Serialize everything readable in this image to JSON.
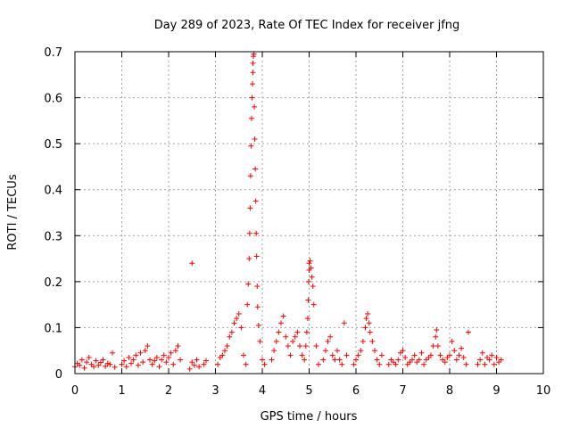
{
  "chart_data": {
    "type": "scatter",
    "title": "Day 289 of 2023, Rate Of TEC Index for receiver jfng",
    "xlabel": "GPS time / hours",
    "ylabel": "ROTI / TECUs",
    "xlim": [
      0,
      10
    ],
    "ylim": [
      0,
      0.7
    ],
    "xticks": [
      "0",
      "1",
      "2",
      "3",
      "4",
      "5",
      "6",
      "7",
      "8",
      "9",
      "10"
    ],
    "yticks": [
      "0",
      "0.1",
      "0.2",
      "0.3",
      "0.4",
      "0.5",
      "0.6",
      "0.7"
    ],
    "grid": true,
    "marker": "+",
    "color": "#ff0000",
    "series": [
      {
        "name": "ROTI",
        "points": [
          [
            0.0,
            0.015
          ],
          [
            0.05,
            0.022
          ],
          [
            0.1,
            0.018
          ],
          [
            0.15,
            0.03
          ],
          [
            0.2,
            0.012
          ],
          [
            0.25,
            0.025
          ],
          [
            0.3,
            0.035
          ],
          [
            0.35,
            0.02
          ],
          [
            0.4,
            0.015
          ],
          [
            0.45,
            0.028
          ],
          [
            0.5,
            0.018
          ],
          [
            0.55,
            0.024
          ],
          [
            0.6,
            0.03
          ],
          [
            0.65,
            0.016
          ],
          [
            0.7,
            0.022
          ],
          [
            0.75,
            0.02
          ],
          [
            0.8,
            0.045
          ],
          [
            0.85,
            0.014
          ],
          [
            1.0,
            0.02
          ],
          [
            1.05,
            0.028
          ],
          [
            1.1,
            0.015
          ],
          [
            1.15,
            0.035
          ],
          [
            1.2,
            0.022
          ],
          [
            1.25,
            0.03
          ],
          [
            1.3,
            0.04
          ],
          [
            1.35,
            0.018
          ],
          [
            1.4,
            0.045
          ],
          [
            1.45,
            0.025
          ],
          [
            1.5,
            0.05
          ],
          [
            1.55,
            0.06
          ],
          [
            1.6,
            0.03
          ],
          [
            1.65,
            0.02
          ],
          [
            1.7,
            0.028
          ],
          [
            1.75,
            0.035
          ],
          [
            1.8,
            0.015
          ],
          [
            1.85,
            0.03
          ],
          [
            1.9,
            0.04
          ],
          [
            1.95,
            0.025
          ],
          [
            2.0,
            0.035
          ],
          [
            2.05,
            0.045
          ],
          [
            2.1,
            0.02
          ],
          [
            2.15,
            0.05
          ],
          [
            2.2,
            0.06
          ],
          [
            2.25,
            0.03
          ],
          [
            2.45,
            0.01
          ],
          [
            2.5,
            0.025
          ],
          [
            2.5,
            0.24
          ],
          [
            2.55,
            0.018
          ],
          [
            2.6,
            0.03
          ],
          [
            2.65,
            0.015
          ],
          [
            2.75,
            0.02
          ],
          [
            2.8,
            0.028
          ],
          [
            3.05,
            0.02
          ],
          [
            3.1,
            0.035
          ],
          [
            3.15,
            0.04
          ],
          [
            3.2,
            0.05
          ],
          [
            3.25,
            0.06
          ],
          [
            3.3,
            0.08
          ],
          [
            3.35,
            0.09
          ],
          [
            3.4,
            0.11
          ],
          [
            3.45,
            0.12
          ],
          [
            3.5,
            0.13
          ],
          [
            3.55,
            0.1
          ],
          [
            3.6,
            0.04
          ],
          [
            3.65,
            0.02
          ],
          [
            3.68,
            0.15
          ],
          [
            3.7,
            0.195
          ],
          [
            3.72,
            0.25
          ],
          [
            3.73,
            0.305
          ],
          [
            3.74,
            0.36
          ],
          [
            3.75,
            0.43
          ],
          [
            3.76,
            0.495
          ],
          [
            3.77,
            0.555
          ],
          [
            3.78,
            0.6
          ],
          [
            3.79,
            0.63
          ],
          [
            3.8,
            0.655
          ],
          [
            3.8,
            0.675
          ],
          [
            3.81,
            0.69
          ],
          [
            3.82,
            0.695
          ],
          [
            3.83,
            0.58
          ],
          [
            3.84,
            0.51
          ],
          [
            3.85,
            0.445
          ],
          [
            3.86,
            0.375
          ],
          [
            3.87,
            0.305
          ],
          [
            3.88,
            0.255
          ],
          [
            3.89,
            0.19
          ],
          [
            3.9,
            0.145
          ],
          [
            3.92,
            0.105
          ],
          [
            3.95,
            0.07
          ],
          [
            4.0,
            0.03
          ],
          [
            4.05,
            0.02
          ],
          [
            4.2,
            0.03
          ],
          [
            4.25,
            0.05
          ],
          [
            4.3,
            0.07
          ],
          [
            4.35,
            0.09
          ],
          [
            4.4,
            0.11
          ],
          [
            4.45,
            0.125
          ],
          [
            4.5,
            0.08
          ],
          [
            4.55,
            0.06
          ],
          [
            4.6,
            0.04
          ],
          [
            4.65,
            0.07
          ],
          [
            4.7,
            0.08
          ],
          [
            4.75,
            0.09
          ],
          [
            4.8,
            0.06
          ],
          [
            4.85,
            0.04
          ],
          [
            4.9,
            0.03
          ],
          [
            4.93,
            0.06
          ],
          [
            4.95,
            0.09
          ],
          [
            4.97,
            0.12
          ],
          [
            4.98,
            0.16
          ],
          [
            4.99,
            0.2
          ],
          [
            5.0,
            0.225
          ],
          [
            5.0,
            0.24
          ],
          [
            5.02,
            0.245
          ],
          [
            5.04,
            0.23
          ],
          [
            5.06,
            0.21
          ],
          [
            5.08,
            0.19
          ],
          [
            5.1,
            0.15
          ],
          [
            5.15,
            0.06
          ],
          [
            5.2,
            0.02
          ],
          [
            5.3,
            0.03
          ],
          [
            5.35,
            0.05
          ],
          [
            5.4,
            0.07
          ],
          [
            5.45,
            0.08
          ],
          [
            5.5,
            0.04
          ],
          [
            5.55,
            0.03
          ],
          [
            5.6,
            0.05
          ],
          [
            5.65,
            0.03
          ],
          [
            5.7,
            0.02
          ],
          [
            5.75,
            0.11
          ],
          [
            5.8,
            0.04
          ],
          [
            5.95,
            0.02
          ],
          [
            6.0,
            0.03
          ],
          [
            6.05,
            0.04
          ],
          [
            6.1,
            0.05
          ],
          [
            6.15,
            0.07
          ],
          [
            6.2,
            0.1
          ],
          [
            6.22,
            0.12
          ],
          [
            6.25,
            0.13
          ],
          [
            6.28,
            0.11
          ],
          [
            6.3,
            0.09
          ],
          [
            6.35,
            0.07
          ],
          [
            6.4,
            0.05
          ],
          [
            6.45,
            0.03
          ],
          [
            6.5,
            0.02
          ],
          [
            6.55,
            0.04
          ],
          [
            6.7,
            0.02
          ],
          [
            6.75,
            0.03
          ],
          [
            6.8,
            0.025
          ],
          [
            6.85,
            0.02
          ],
          [
            6.9,
            0.03
          ],
          [
            6.95,
            0.045
          ],
          [
            7.0,
            0.05
          ],
          [
            7.05,
            0.035
          ],
          [
            7.1,
            0.02
          ],
          [
            7.15,
            0.025
          ],
          [
            7.2,
            0.03
          ],
          [
            7.25,
            0.04
          ],
          [
            7.3,
            0.025
          ],
          [
            7.35,
            0.03
          ],
          [
            7.4,
            0.045
          ],
          [
            7.45,
            0.02
          ],
          [
            7.5,
            0.03
          ],
          [
            7.55,
            0.035
          ],
          [
            7.6,
            0.04
          ],
          [
            7.65,
            0.06
          ],
          [
            7.7,
            0.08
          ],
          [
            7.72,
            0.095
          ],
          [
            7.75,
            0.06
          ],
          [
            7.8,
            0.04
          ],
          [
            7.85,
            0.03
          ],
          [
            7.9,
            0.025
          ],
          [
            7.95,
            0.035
          ],
          [
            8.0,
            0.04
          ],
          [
            8.05,
            0.07
          ],
          [
            8.1,
            0.05
          ],
          [
            8.15,
            0.03
          ],
          [
            8.2,
            0.04
          ],
          [
            8.25,
            0.055
          ],
          [
            8.3,
            0.035
          ],
          [
            8.35,
            0.02
          ],
          [
            8.4,
            0.09
          ],
          [
            8.6,
            0.02
          ],
          [
            8.65,
            0.03
          ],
          [
            8.7,
            0.045
          ],
          [
            8.75,
            0.02
          ],
          [
            8.8,
            0.035
          ],
          [
            8.85,
            0.03
          ],
          [
            8.9,
            0.04
          ],
          [
            8.95,
            0.02
          ],
          [
            9.0,
            0.035
          ],
          [
            9.05,
            0.025
          ],
          [
            9.1,
            0.03
          ]
        ]
      }
    ]
  }
}
